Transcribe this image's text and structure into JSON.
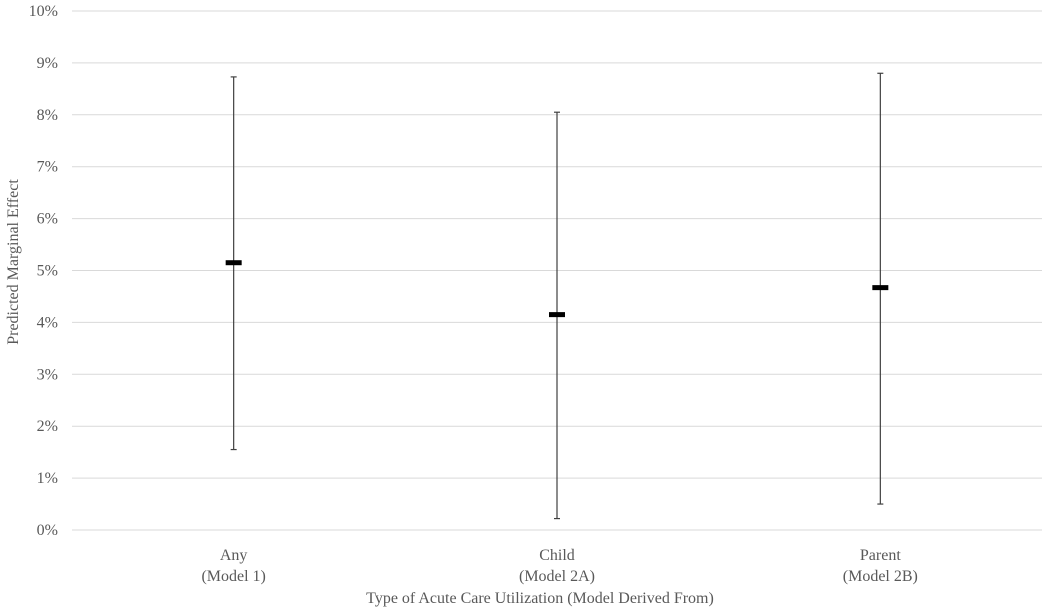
{
  "chart_data": {
    "type": "scatter",
    "title": "",
    "xlabel": "Type of Acute Care Utilization (Model Derived From)",
    "ylabel": "Predicted Marginal Effect",
    "ylim": [
      0,
      10
    ],
    "y_unit": "%",
    "yticks": [
      "0%",
      "1%",
      "2%",
      "3%",
      "4%",
      "5%",
      "6%",
      "7%",
      "8%",
      "9%",
      "10%"
    ],
    "grid": true,
    "legend": "none",
    "categories": [
      {
        "line1": "Any",
        "line2": "(Model 1)"
      },
      {
        "line1": "Child",
        "line2": "(Model 2A)"
      },
      {
        "line1": "Parent",
        "line2": "(Model 2B)"
      }
    ],
    "series": [
      {
        "estimate": [
          5.15,
          4.15,
          4.67
        ],
        "ci_lower": [
          1.55,
          0.22,
          0.5
        ],
        "ci_upper": [
          8.73,
          8.05,
          8.8
        ]
      }
    ],
    "colors": {
      "point": "#000000",
      "errorbar": "#404040",
      "grid": "#d9d9d9",
      "text": "#595959"
    }
  }
}
